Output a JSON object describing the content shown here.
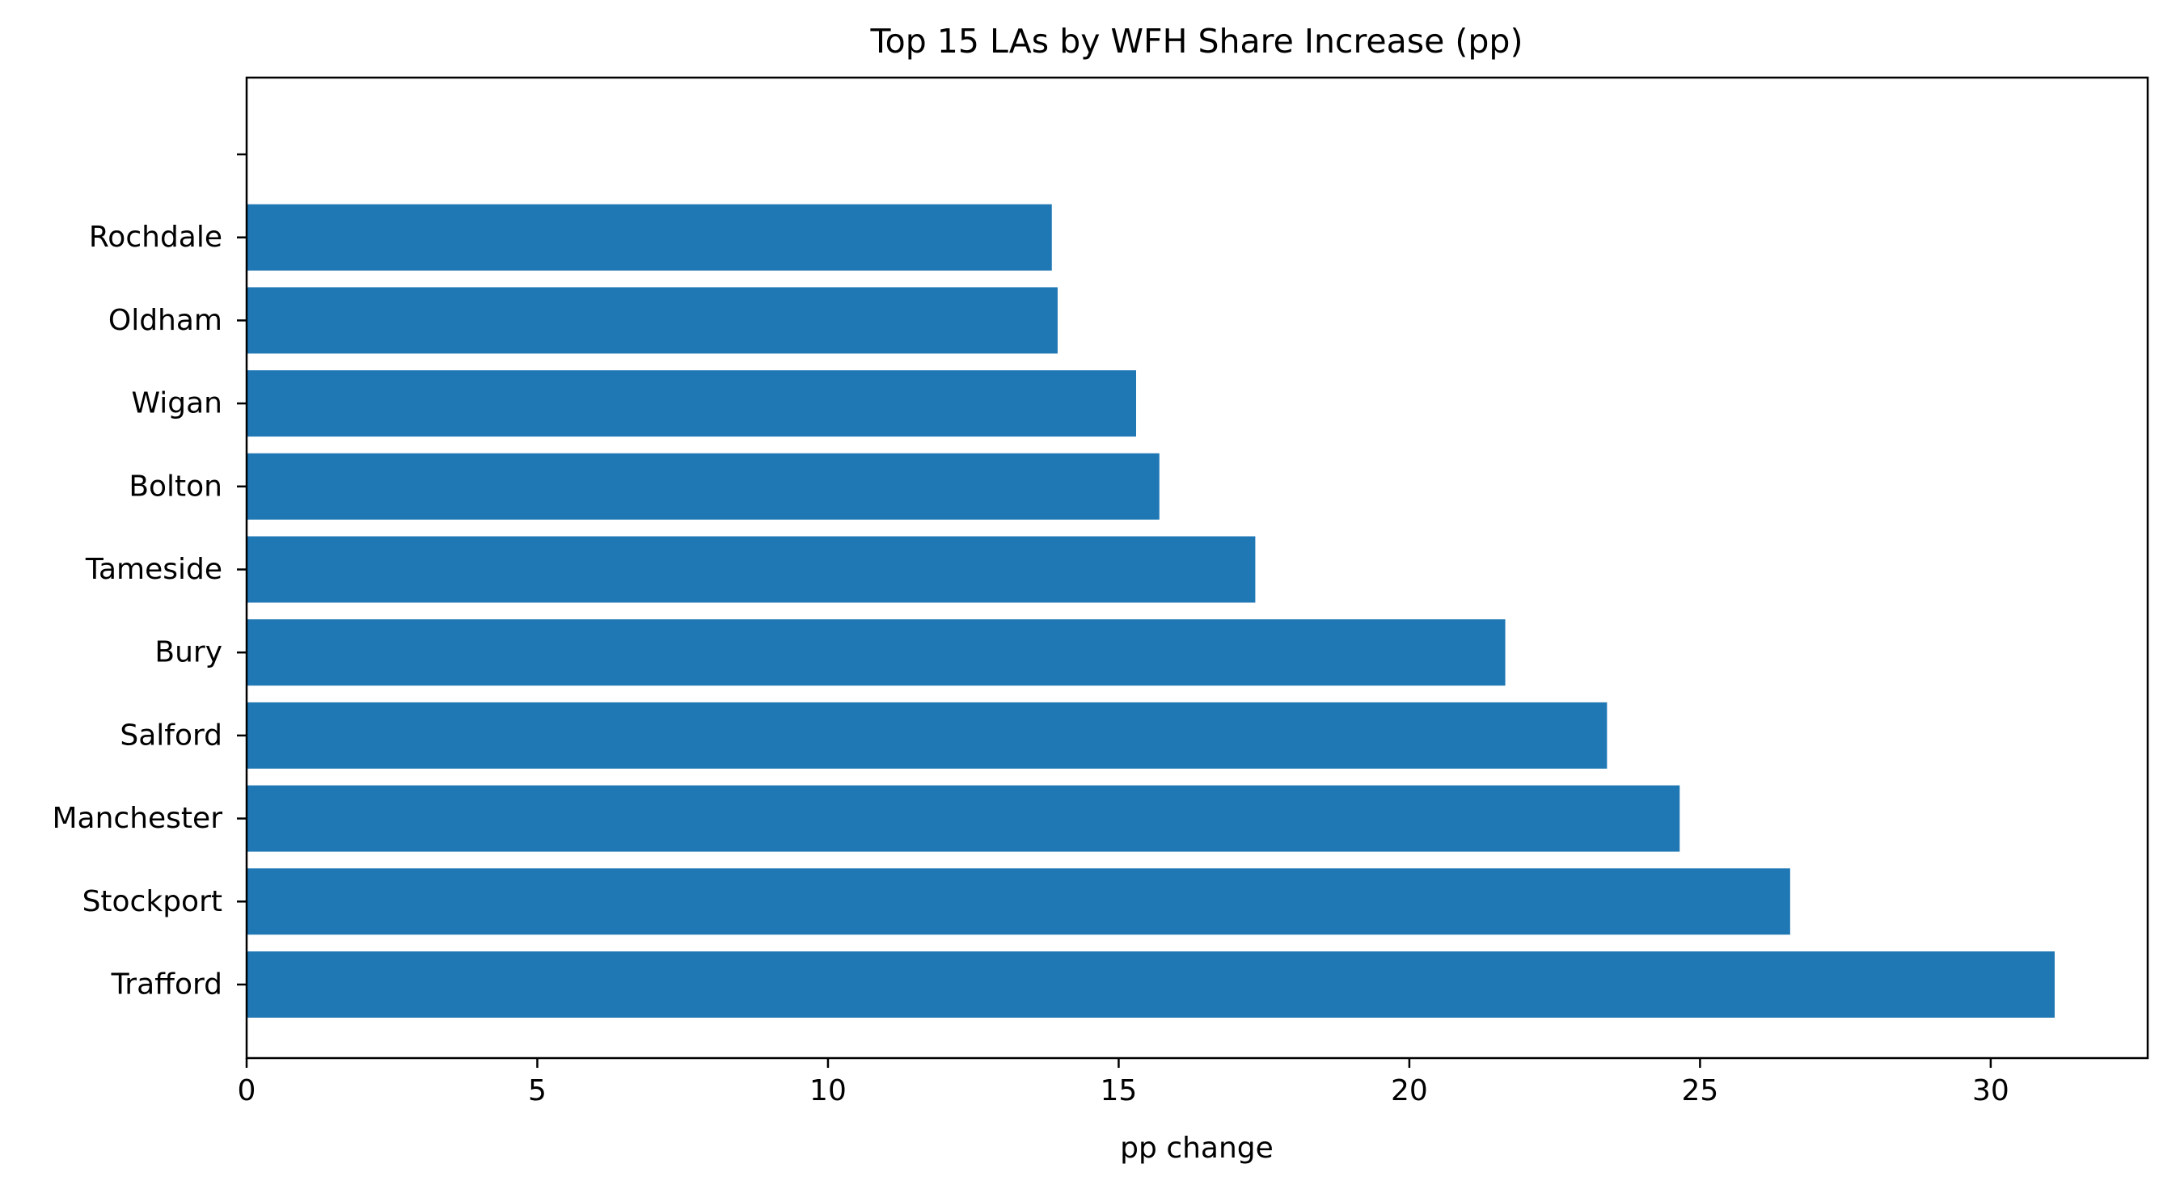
{
  "chart_data": {
    "type": "bar",
    "orientation": "horizontal",
    "title": "Top 15 LAs by WFH Share Increase (pp)",
    "xlabel": "pp change",
    "ylabel": "",
    "categories": [
      "Trafford",
      "Stockport",
      "Manchester",
      "Salford",
      "Bury",
      "Tameside",
      "Bolton",
      "Wigan",
      "Oldham",
      "Rochdale",
      ""
    ],
    "values": [
      31.1,
      26.55,
      24.65,
      23.4,
      21.65,
      17.35,
      15.7,
      15.3,
      13.95,
      13.85,
      null
    ],
    "xlim": [
      0,
      32.7
    ],
    "xticks": [
      0,
      5,
      10,
      15,
      20,
      25,
      30
    ],
    "bar_color": "#1f77b4",
    "grid": false
  }
}
